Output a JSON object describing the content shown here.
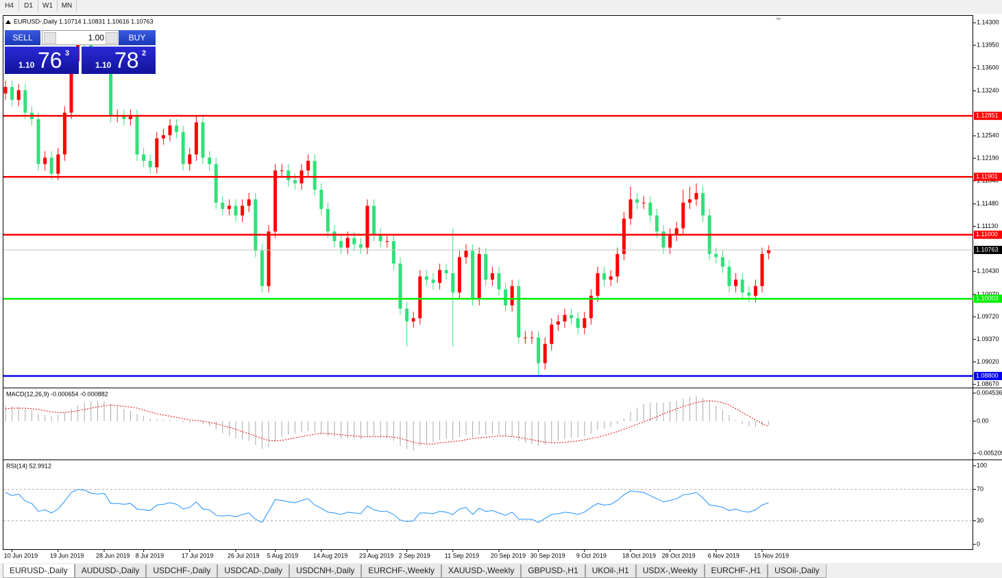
{
  "toolbar": {
    "timeframes": [
      "H4",
      "D1",
      "W1",
      "MN"
    ]
  },
  "trade_panel": {
    "sell_label": "SELL",
    "buy_label": "BUY",
    "lots": "1.00",
    "sell_price": {
      "prefix": "1.10",
      "big": "76",
      "small": "3"
    },
    "buy_price": {
      "prefix": "1.10",
      "big": "78",
      "small": "2"
    }
  },
  "chart_data": [
    {
      "type": "candlestick",
      "title": "EURUSD-,Daily  1.10714 1.10831 1.10616 1.10763",
      "up_color": "#ff0000",
      "down_color": "#32e07a",
      "categories": [
        null,
        "10 Jun 2019",
        null,
        null,
        null,
        null,
        null,
        null,
        "19 Jun 2019",
        null,
        null,
        null,
        null,
        null,
        null,
        "28 Jun 2019",
        null,
        null,
        null,
        null,
        null,
        "8 Jul 2019",
        null,
        null,
        null,
        null,
        null,
        null,
        "17 Jul 2019",
        null,
        null,
        null,
        null,
        null,
        null,
        "26 Jul 2019",
        null,
        null,
        null,
        null,
        null,
        "5 Aug 2019",
        null,
        null,
        null,
        null,
        null,
        null,
        "14 Aug 2019",
        null,
        null,
        null,
        null,
        null,
        null,
        "23 Aug 2019",
        null,
        null,
        null,
        null,
        null,
        "2 Sep 2019",
        null,
        null,
        null,
        null,
        null,
        null,
        "11 Sep 2019",
        null,
        null,
        null,
        null,
        null,
        null,
        "20 Sep 2019",
        null,
        null,
        null,
        null,
        null,
        "30 Sep 2019",
        null,
        null,
        null,
        null,
        null,
        null,
        "9 Oct 2019",
        null,
        null,
        null,
        null,
        null,
        null,
        "18 Oct 2019",
        null,
        null,
        null,
        null,
        null,
        "28 Oct 2019",
        null,
        null,
        null,
        null,
        null,
        null,
        "6 Nov 2019",
        null,
        null,
        null,
        null,
        null,
        null,
        "15 Nov 2019",
        null
      ],
      "open": [
        1.132,
        1.133,
        1.131,
        1.1325,
        1.129,
        1.128,
        1.121,
        1.122,
        1.1195,
        1.1225,
        1.129,
        1.137,
        1.14,
        1.1395,
        1.137,
        1.1365,
        1.137,
        1.1285,
        1.1285,
        1.128,
        1.1285,
        1.1225,
        1.1215,
        1.1205,
        1.125,
        1.1255,
        1.127,
        1.126,
        1.121,
        1.1225,
        1.1275,
        1.122,
        1.121,
        1.115,
        1.114,
        1.1145,
        1.113,
        1.1145,
        1.1155,
        1.1075,
        1.102,
        1.1105,
        1.12,
        1.12,
        1.1185,
        1.118,
        1.12,
        1.1215,
        1.117,
        1.114,
        1.1105,
        1.109,
        1.108,
        1.1095,
        1.1085,
        1.108,
        1.1145,
        1.11,
        1.109,
        1.109,
        1.1055,
        1.0985,
        1.0965,
        1.097,
        1.1035,
        1.103,
        1.1025,
        1.1045,
        1.104,
        1.101,
        1.1065,
        1.1075,
        1.1,
        1.107,
        1.103,
        1.104,
        1.1015,
        1.099,
        1.102,
        1.094,
        1.094,
        1.094,
        1.09,
        1.093,
        1.096,
        1.0965,
        1.0975,
        1.097,
        1.0955,
        1.097,
        1.1005,
        1.104,
        1.103,
        1.1035,
        1.107,
        1.1125,
        1.1155,
        1.115,
        1.115,
        1.113,
        1.1105,
        1.108,
        1.11,
        1.111,
        1.115,
        1.1155,
        1.1165,
        1.113,
        1.107,
        1.1065,
        1.105,
        1.102,
        1.103,
        1.101,
        1.1005,
        1.102,
        1.10714
      ],
      "high": [
        1.134,
        1.134,
        1.1335,
        1.1335,
        1.13,
        1.129,
        1.123,
        1.123,
        1.1235,
        1.13,
        1.138,
        1.141,
        1.141,
        1.1405,
        1.138,
        1.138,
        1.138,
        1.1295,
        1.1295,
        1.1295,
        1.1295,
        1.1235,
        1.1225,
        1.126,
        1.1265,
        1.128,
        1.128,
        1.127,
        1.1235,
        1.1285,
        1.1285,
        1.123,
        1.122,
        1.116,
        1.1155,
        1.1155,
        1.1155,
        1.1165,
        1.1165,
        1.1085,
        1.1115,
        1.121,
        1.121,
        1.121,
        1.1195,
        1.121,
        1.1225,
        1.1225,
        1.118,
        1.115,
        1.1115,
        1.11,
        1.1105,
        1.1105,
        1.1095,
        1.1155,
        1.1155,
        1.111,
        1.11,
        1.11,
        1.1065,
        1.0995,
        1.098,
        1.1045,
        1.1045,
        1.104,
        1.1055,
        1.1055,
        1.111,
        1.1075,
        1.1085,
        1.1085,
        1.108,
        1.108,
        1.105,
        1.105,
        1.1025,
        1.103,
        1.103,
        1.095,
        1.095,
        1.095,
        1.094,
        1.097,
        1.0975,
        1.0985,
        1.0985,
        1.098,
        1.098,
        1.1015,
        1.105,
        1.105,
        1.1045,
        1.108,
        1.1135,
        1.1175,
        1.1165,
        1.116,
        1.116,
        1.114,
        1.1115,
        1.111,
        1.112,
        1.117,
        1.1175,
        1.118,
        1.1175,
        1.114,
        1.108,
        1.1075,
        1.106,
        1.104,
        1.104,
        1.102,
        1.103,
        1.108,
        1.10831
      ],
      "low": [
        1.131,
        1.13,
        1.13,
        1.128,
        1.127,
        1.12,
        1.12,
        1.1185,
        1.1185,
        1.1215,
        1.128,
        1.136,
        1.1385,
        1.136,
        1.1355,
        1.1355,
        1.1275,
        1.1275,
        1.127,
        1.127,
        1.1215,
        1.1205,
        1.1195,
        1.1195,
        1.124,
        1.1245,
        1.125,
        1.12,
        1.12,
        1.1215,
        1.121,
        1.12,
        1.114,
        1.113,
        1.113,
        1.112,
        1.112,
        1.1135,
        1.1065,
        1.101,
        1.101,
        1.1095,
        1.119,
        1.1175,
        1.117,
        1.117,
        1.119,
        1.116,
        1.113,
        1.1095,
        1.108,
        1.107,
        1.107,
        1.1075,
        1.107,
        1.107,
        1.109,
        1.108,
        1.108,
        1.1045,
        1.0975,
        1.0926,
        1.0955,
        1.096,
        1.102,
        1.1015,
        1.1015,
        1.103,
        1.0926,
        1.1,
        1.1055,
        1.099,
        1.099,
        1.102,
        1.102,
        1.1005,
        1.098,
        1.098,
        1.093,
        1.093,
        1.093,
        1.088,
        1.089,
        1.092,
        1.095,
        1.0955,
        1.096,
        1.0945,
        1.0945,
        1.096,
        1.0995,
        1.102,
        1.102,
        1.1025,
        1.106,
        1.1115,
        1.114,
        1.114,
        1.112,
        1.1095,
        1.107,
        1.107,
        1.109,
        1.11,
        1.114,
        1.1145,
        1.112,
        1.106,
        1.1055,
        1.104,
        1.101,
        1.101,
        1.1,
        1.0995,
        1.0995,
        1.101,
        1.10616
      ],
      "close": [
        1.133,
        1.131,
        1.1325,
        1.129,
        1.128,
        1.121,
        1.122,
        1.1195,
        1.1225,
        1.129,
        1.137,
        1.14,
        1.1395,
        1.137,
        1.1365,
        1.137,
        1.1285,
        1.1285,
        1.128,
        1.1285,
        1.1225,
        1.1215,
        1.1205,
        1.125,
        1.1255,
        1.127,
        1.126,
        1.121,
        1.1225,
        1.1275,
        1.122,
        1.121,
        1.115,
        1.114,
        1.1145,
        1.113,
        1.1145,
        1.1155,
        1.1075,
        1.102,
        1.1105,
        1.12,
        1.12,
        1.1185,
        1.118,
        1.12,
        1.1215,
        1.117,
        1.114,
        1.1105,
        1.109,
        1.108,
        1.1095,
        1.1085,
        1.108,
        1.1145,
        1.11,
        1.109,
        1.109,
        1.1055,
        1.0985,
        1.0965,
        1.097,
        1.1035,
        1.103,
        1.1025,
        1.1045,
        1.104,
        1.101,
        1.1065,
        1.1075,
        1.1,
        1.107,
        1.103,
        1.104,
        1.1015,
        1.099,
        1.102,
        1.094,
        1.094,
        1.094,
        1.09,
        1.093,
        1.096,
        1.0965,
        1.0975,
        1.097,
        1.0955,
        1.097,
        1.1005,
        1.104,
        1.103,
        1.1035,
        1.107,
        1.1125,
        1.1155,
        1.115,
        1.115,
        1.113,
        1.1105,
        1.108,
        1.11,
        1.111,
        1.115,
        1.1155,
        1.1165,
        1.113,
        1.107,
        1.1065,
        1.105,
        1.102,
        1.103,
        1.101,
        1.1005,
        1.102,
        1.107,
        1.10763
      ],
      "ylim": [
        1.0863,
        1.1442
      ],
      "yticks": [
        {
          "value": 1.143,
          "label": "1.14300"
        },
        {
          "value": 1.1395,
          "label": "1.13950"
        },
        {
          "value": 1.136,
          "label": "1.13600"
        },
        {
          "value": 1.1324,
          "label": "1.13240"
        },
        {
          "value": 1.1254,
          "label": "1.12540"
        },
        {
          "value": 1.1219,
          "label": "1.12190"
        },
        {
          "value": 1.1184,
          "label": "1.11840"
        },
        {
          "value": 1.1148,
          "label": "1.11480"
        },
        {
          "value": 1.1113,
          "label": "1.11130"
        },
        {
          "value": 1.1043,
          "label": "1.10430"
        },
        {
          "value": 1.1007,
          "label": "1.10070"
        },
        {
          "value": 1.0972,
          "label": "1.09720"
        },
        {
          "value": 1.0937,
          "label": "1.09370"
        },
        {
          "value": 1.0902,
          "label": "1.09020"
        },
        {
          "value": 1.0867,
          "label": "1.08670"
        }
      ],
      "levels": [
        {
          "value": 1.12851,
          "label": "1.12851",
          "color": "#ff0000"
        },
        {
          "value": 1.11901,
          "label": "1.11901",
          "color": "#ff0000"
        },
        {
          "value": 1.11,
          "label": "1.11000",
          "color": "#ff0000"
        },
        {
          "value": 1.10003,
          "label": "1.10003",
          "color": "#00ee00"
        },
        {
          "value": 1.088,
          "label": "1.08800",
          "color": "#0000ee"
        },
        {
          "value": 1.10763,
          "label": "1.10763",
          "color": "#000000"
        }
      ]
    },
    {
      "type": "macd",
      "title": "MACD(12,26,9) -0.000654 -0.000882",
      "histogram_color": "#a8a8a8",
      "signal_color": "#e00000",
      "histogram": [
        0.0025,
        0.0024,
        0.0023,
        0.002,
        0.0018,
        0.0012,
        0.001,
        0.0008,
        0.001,
        0.0014,
        0.002,
        0.0026,
        0.003,
        0.0032,
        0.0032,
        0.0032,
        0.0028,
        0.0024,
        0.002,
        0.0017,
        0.0012,
        0.0008,
        0.0004,
        0.0003,
        0.0002,
        0.0002,
        0.0001,
        -0.0002,
        -0.0003,
        0.0,
        -0.0004,
        -0.0008,
        -0.0014,
        -0.002,
        -0.0024,
        -0.0028,
        -0.003,
        -0.0032,
        -0.0038,
        -0.0045,
        -0.0042,
        -0.0032,
        -0.0025,
        -0.0022,
        -0.002,
        -0.0018,
        -0.0016,
        -0.0018,
        -0.002,
        -0.0024,
        -0.0026,
        -0.0028,
        -0.0028,
        -0.0028,
        -0.0029,
        -0.0024,
        -0.0024,
        -0.0026,
        -0.0027,
        -0.0032,
        -0.004,
        -0.0045,
        -0.0047,
        -0.004,
        -0.0036,
        -0.0034,
        -0.003,
        -0.0028,
        -0.003,
        -0.0026,
        -0.0022,
        -0.0026,
        -0.0022,
        -0.0022,
        -0.0021,
        -0.0022,
        -0.0025,
        -0.0025,
        -0.0032,
        -0.0035,
        -0.0037,
        -0.004,
        -0.0038,
        -0.0034,
        -0.0032,
        -0.0029,
        -0.0027,
        -0.0026,
        -0.0024,
        -0.002,
        -0.0014,
        -0.0012,
        -0.001,
        -0.0005,
        0.0005,
        0.0015,
        0.0022,
        0.0028,
        0.003,
        0.003,
        0.003,
        0.0032,
        0.0033,
        0.0036,
        0.0039,
        0.0041,
        0.0038,
        0.0032,
        0.0025,
        0.0018,
        0.001,
        0.0002,
        -0.0005,
        -0.0008,
        -0.0009,
        -0.0008,
        -0.000654
      ],
      "signal": [
        0.002,
        0.0021,
        0.0021,
        0.0021,
        0.002,
        0.0019,
        0.0017,
        0.0015,
        0.0014,
        0.0014,
        0.0015,
        0.0017,
        0.0019,
        0.0021,
        0.0023,
        0.0025,
        0.0026,
        0.0025,
        0.0024,
        0.0023,
        0.0021,
        0.0018,
        0.0015,
        0.0012,
        0.001,
        0.0008,
        0.0006,
        0.0004,
        0.0002,
        0.0001,
        0.0,
        -0.0002,
        -0.0004,
        -0.0007,
        -0.001,
        -0.0013,
        -0.0017,
        -0.002,
        -0.0024,
        -0.0028,
        -0.0031,
        -0.0032,
        -0.0031,
        -0.0029,
        -0.0027,
        -0.0025,
        -0.0023,
        -0.0021,
        -0.002,
        -0.002,
        -0.0021,
        -0.0022,
        -0.0023,
        -0.0024,
        -0.0025,
        -0.0025,
        -0.0025,
        -0.0025,
        -0.0025,
        -0.0026,
        -0.0028,
        -0.0031,
        -0.0034,
        -0.0036,
        -0.0037,
        -0.0037,
        -0.0035,
        -0.0034,
        -0.0033,
        -0.0032,
        -0.003,
        -0.0028,
        -0.0027,
        -0.0026,
        -0.0025,
        -0.0024,
        -0.0024,
        -0.0025,
        -0.0026,
        -0.0028,
        -0.003,
        -0.0032,
        -0.0034,
        -0.0035,
        -0.0035,
        -0.0034,
        -0.0033,
        -0.0032,
        -0.003,
        -0.0028,
        -0.0026,
        -0.0023,
        -0.002,
        -0.0017,
        -0.0013,
        -0.0009,
        -0.0005,
        -0.0001,
        0.0003,
        0.0007,
        0.0012,
        0.0016,
        0.002,
        0.0024,
        0.0027,
        0.003,
        0.0032,
        0.0033,
        0.0032,
        0.003,
        0.0026,
        0.002,
        0.0014,
        0.0008,
        0.0002,
        -0.0004,
        -0.000882
      ],
      "ylim": [
        -0.00609,
        0.00531
      ],
      "yticks": [
        0.004536,
        {
          "value": 0,
          "label": "0.00"
        },
        -0.005205
      ]
    },
    {
      "type": "line",
      "title": "RSI(14) 52.9912",
      "color": "#1e90ff",
      "values": [
        66,
        62,
        64,
        55,
        52,
        42,
        44,
        40,
        45,
        55,
        66,
        70,
        69,
        65,
        64,
        65,
        52,
        52,
        51,
        52,
        45,
        44,
        43,
        50,
        51,
        53,
        51,
        45,
        47,
        54,
        45,
        44,
        37,
        36,
        37,
        35,
        38,
        40,
        32,
        28,
        42,
        57,
        56,
        54,
        53,
        56,
        58,
        50,
        46,
        41,
        40,
        38,
        41,
        40,
        39,
        49,
        44,
        42,
        42,
        38,
        31,
        29,
        30,
        40,
        40,
        39,
        42,
        41,
        38,
        45,
        47,
        38,
        46,
        42,
        43,
        40,
        37,
        41,
        32,
        32,
        32,
        28,
        33,
        38,
        39,
        41,
        40,
        38,
        41,
        47,
        52,
        50,
        51,
        56,
        63,
        68,
        67,
        66,
        62,
        58,
        54,
        56,
        58,
        63,
        64,
        66,
        59,
        50,
        49,
        47,
        43,
        45,
        42,
        41,
        44,
        50,
        52.9912
      ],
      "ylim": [
        -7,
        107
      ],
      "yticks": [
        100,
        70,
        30,
        0
      ],
      "level_lines": [
        70,
        30
      ]
    }
  ],
  "tabs": [
    "EURUSD-,Daily",
    "AUDUSD-,Daily",
    "USDCHF-,Daily",
    "USDCAD-,Daily",
    "USDCNH-,Daily",
    "EURCHF-,Weekly",
    "XAUUSD-,Weekly",
    "GBPUSD-,H1",
    "UKOil-,H1",
    "USDX-,Weekly",
    "EURCHF-,H1",
    "USOil-,Daily"
  ]
}
